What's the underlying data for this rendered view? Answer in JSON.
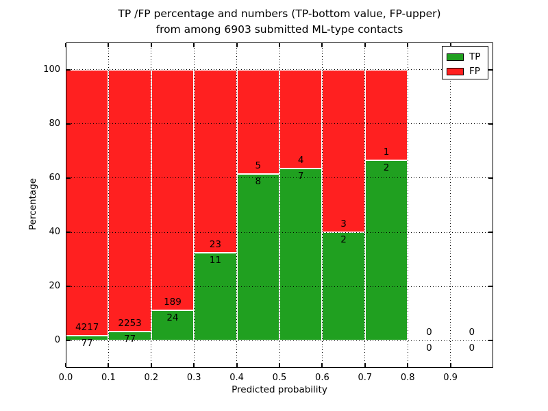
{
  "chart_data": {
    "type": "bar",
    "stacked": true,
    "title_lines": [
      "TP /FP percentage and numbers (TP-bottom value, FP-upper)",
      "from among 6903 submitted ML-type contacts"
    ],
    "xlabel": "Predicted probability",
    "ylabel": "Percentage",
    "xlim": [
      0.0,
      1.0
    ],
    "ylim": [
      -10,
      110
    ],
    "x_ticks": [
      "0.0",
      "0.1",
      "0.2",
      "0.3",
      "0.4",
      "0.5",
      "0.6",
      "0.7",
      "0.8",
      "0.9"
    ],
    "y_ticks": [
      "0",
      "20",
      "40",
      "60",
      "80",
      "100"
    ],
    "grid_style": "dotted",
    "grid_on_top": true,
    "legend_position": "upper-right",
    "bin_width": 0.1,
    "bin_starts": [
      0.0,
      0.1,
      0.2,
      0.3,
      0.4,
      0.5,
      0.6,
      0.7,
      0.8,
      0.9
    ],
    "series": [
      {
        "name": "TP",
        "color": "#20a020",
        "counts": [
          77,
          77,
          24,
          11,
          8,
          7,
          2,
          2,
          0,
          0
        ]
      },
      {
        "name": "FP",
        "color": "#ff2020",
        "counts": [
          4217,
          2253,
          189,
          23,
          5,
          4,
          3,
          1,
          0,
          0
        ]
      }
    ],
    "tp_percent_by_bin": [
      1.8,
      3.3,
      11.3,
      32.4,
      61.5,
      63.6,
      40.0,
      66.7,
      null,
      null
    ],
    "total_contacts": 6903,
    "axis_color": "#000000",
    "background": "#ffffff"
  }
}
